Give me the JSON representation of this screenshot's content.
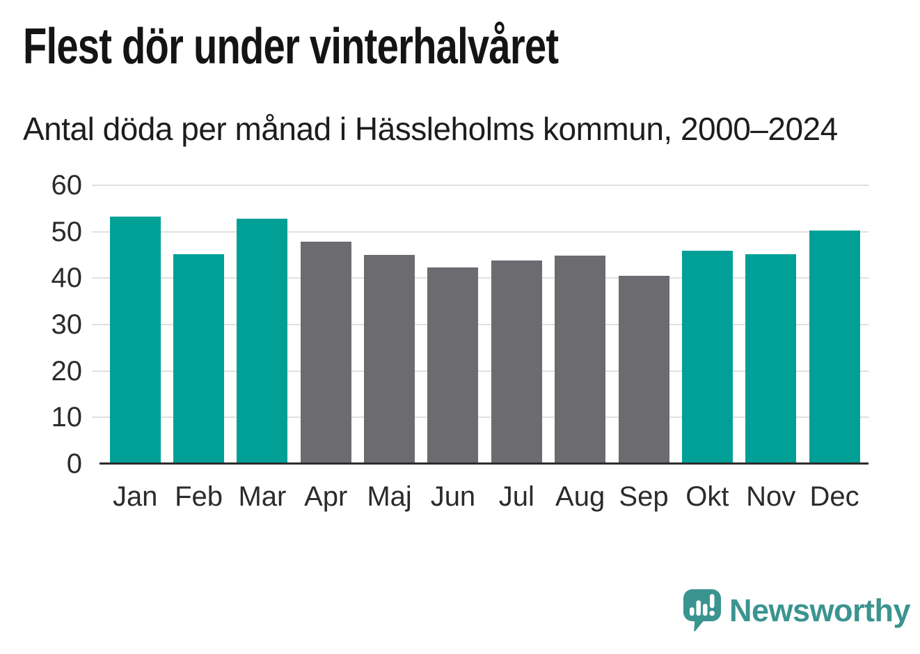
{
  "page": {
    "title": "Flest dör under vinterhalvåret",
    "subtitle": "Antal döda per månad i Hässleholms kommun, 2000–2024"
  },
  "branding": {
    "name": "Newsworthy",
    "icon": "speech-bubble-bar-chart-exclamation-icon"
  },
  "colors": {
    "background": "#ffffff",
    "winter_bar": "#00a096",
    "summer_bar": "#6b6b70",
    "gridline": "#e0e0e0",
    "axis_line": "#2d2d2d",
    "title_text": "#141414",
    "subtitle_text": "#1d1d1d",
    "tick_text": "#2b2b2b",
    "logo": "#3b9490"
  },
  "chart_data": {
    "type": "bar",
    "title": "Flest dör under vinterhalvåret",
    "subtitle": "Antal döda per månad i Hässleholms kommun, 2000–2024",
    "categories": [
      "Jan",
      "Feb",
      "Mar",
      "Apr",
      "Maj",
      "Jun",
      "Jul",
      "Aug",
      "Sep",
      "Okt",
      "Nov",
      "Dec"
    ],
    "values": [
      53,
      44.9,
      52.5,
      47.6,
      44.7,
      42,
      43.5,
      44.6,
      40.2,
      45.6,
      44.9,
      50
    ],
    "highlighted_categories": [
      "Jan",
      "Feb",
      "Mar",
      "Okt",
      "Nov",
      "Dec"
    ],
    "highlight_meaning": "winter half-year months",
    "xlabel": "",
    "ylabel": "",
    "ylim": [
      0,
      60
    ],
    "yticks": [
      0,
      10,
      20,
      30,
      40,
      50,
      60
    ],
    "grid": true,
    "legend": false
  }
}
